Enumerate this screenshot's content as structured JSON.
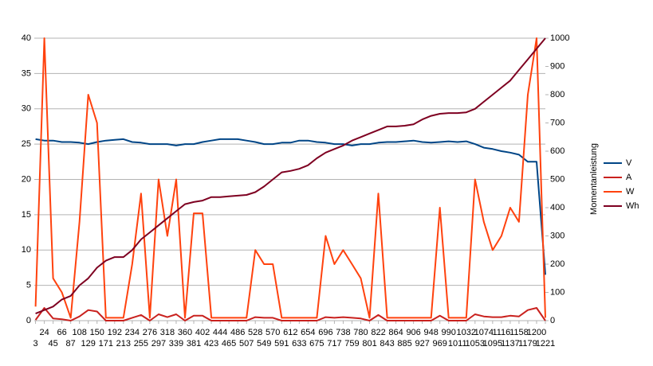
{
  "chart_data": {
    "type": "line",
    "y2_label": "Momentanleistung",
    "x": [
      3,
      24,
      45,
      66,
      87,
      108,
      129,
      150,
      171,
      192,
      213,
      234,
      255,
      276,
      297,
      318,
      339,
      360,
      381,
      402,
      423,
      444,
      465,
      486,
      507,
      528,
      549,
      570,
      591,
      612,
      633,
      654,
      675,
      696,
      717,
      738,
      759,
      780,
      801,
      822,
      843,
      864,
      885,
      906,
      927,
      948,
      969,
      990,
      1011,
      1032,
      1053,
      1074,
      1095,
      1116,
      1137,
      1158,
      1179,
      1200,
      1221
    ],
    "xlim": [
      0,
      1221
    ],
    "xticks": [
      3,
      24,
      45,
      66,
      87,
      108,
      129,
      150,
      171,
      192,
      213,
      234,
      255,
      276,
      297,
      318,
      339,
      360,
      381,
      402,
      423,
      444,
      465,
      486,
      507,
      528,
      549,
      570,
      591,
      612,
      633,
      654,
      675,
      696,
      717,
      738,
      759,
      780,
      801,
      822,
      843,
      864,
      885,
      906,
      927,
      948,
      969,
      990,
      1011,
      1032,
      1053,
      1074,
      1095,
      1116,
      1137,
      1158,
      1179,
      1200,
      1221
    ],
    "ylim": [
      0,
      40
    ],
    "yticks": [
      0,
      5,
      10,
      15,
      20,
      25,
      30,
      35,
      40
    ],
    "y2lim": [
      0,
      1000
    ],
    "y2ticks": [
      0,
      100,
      200,
      300,
      400,
      500,
      600,
      700,
      800,
      900,
      1000
    ],
    "grid": true,
    "legend": "right",
    "series": [
      {
        "name": "V",
        "color": "#004586",
        "values": [
          25.7,
          25.5,
          25.5,
          25.3,
          25.3,
          25.2,
          25,
          25.3,
          25.5,
          25.6,
          25.7,
          25.3,
          25.2,
          25,
          25,
          25,
          24.8,
          25,
          25,
          25.3,
          25.5,
          25.7,
          25.7,
          25.7,
          25.5,
          25.3,
          25,
          25,
          25.2,
          25.2,
          25.5,
          25.5,
          25.3,
          25.2,
          25,
          25,
          24.8,
          25,
          25,
          25.2,
          25.3,
          25.3,
          25.4,
          25.5,
          25.3,
          25.2,
          25.3,
          25.4,
          25.3,
          25.4,
          25,
          24.5,
          24.3,
          24,
          23.8,
          23.5,
          22.5,
          22.5,
          6.5
        ]
      },
      {
        "name": "A",
        "color": "#c9211e",
        "values": [
          0.1,
          1.8,
          0.3,
          0.2,
          0,
          0.6,
          1.5,
          1.3,
          0,
          0,
          0,
          0.4,
          0.8,
          0,
          0.9,
          0.5,
          0.9,
          0,
          0.7,
          0.7,
          0,
          0,
          0,
          0,
          0,
          0.5,
          0.4,
          0.4,
          0,
          0,
          0,
          0,
          0,
          0.5,
          0.4,
          0.5,
          0.4,
          0.3,
          0,
          0.8,
          0,
          0,
          0,
          0,
          0,
          0,
          0.7,
          0,
          0,
          0,
          0.9,
          0.6,
          0.5,
          0.5,
          0.7,
          0.6,
          1.5,
          1.8,
          0
        ]
      },
      {
        "name": "W",
        "color": "#ff420e",
        "axis": "y2",
        "values": [
          50,
          1000,
          150,
          100,
          10,
          350,
          800,
          700,
          10,
          10,
          10,
          200,
          450,
          10,
          500,
          300,
          500,
          10,
          380,
          380,
          10,
          10,
          10,
          10,
          10,
          250,
          200,
          200,
          10,
          10,
          10,
          10,
          10,
          300,
          200,
          250,
          200,
          150,
          10,
          450,
          10,
          10,
          10,
          10,
          10,
          10,
          400,
          10,
          10,
          10,
          500,
          350,
          250,
          300,
          400,
          350,
          800,
          1000,
          10
        ]
      },
      {
        "name": "Wh",
        "color": "#7e0021",
        "values": [
          1,
          1.5,
          2,
          3,
          3.5,
          5,
          6,
          7.5,
          8.5,
          9,
          9,
          10,
          11.5,
          12.5,
          13.5,
          14.5,
          15.5,
          16.5,
          16.8,
          17,
          17.5,
          17.5,
          17.6,
          17.7,
          17.8,
          18.2,
          19,
          20,
          21,
          21.2,
          21.5,
          22,
          23,
          23.8,
          24.3,
          24.8,
          25.5,
          26,
          26.5,
          27,
          27.5,
          27.5,
          27.6,
          27.8,
          28.5,
          29,
          29.3,
          29.4,
          29.4,
          29.5,
          30,
          31,
          32,
          33,
          34,
          35.5,
          37,
          38.5,
          40
        ]
      }
    ]
  }
}
